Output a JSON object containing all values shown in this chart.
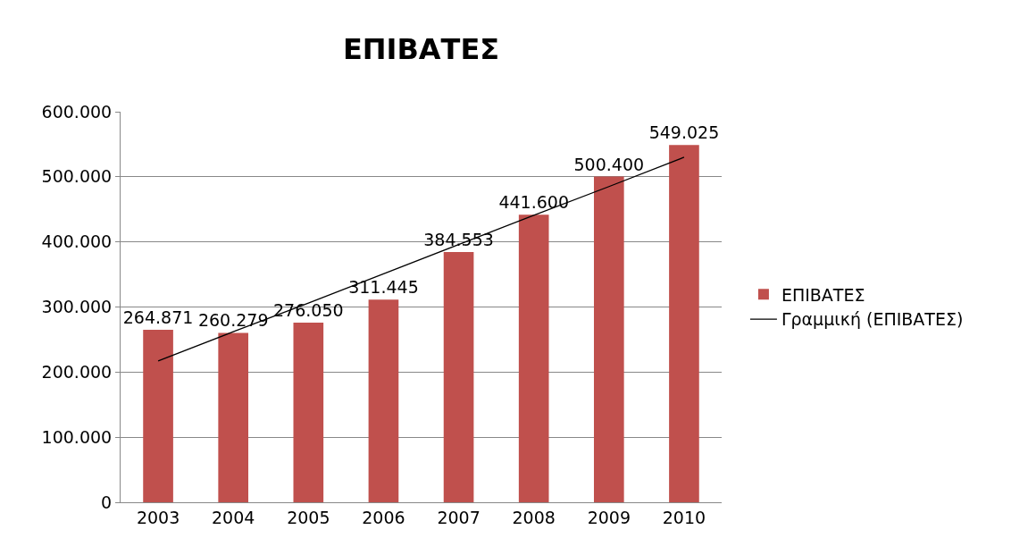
{
  "chart_data": {
    "type": "bar",
    "title": "ΕΠΙΒΑΤΕΣ",
    "categories": [
      "2003",
      "2004",
      "2005",
      "2006",
      "2007",
      "2008",
      "2009",
      "2010"
    ],
    "series": [
      {
        "name": "ΕΠΙΒΑΤΕΣ",
        "color": "#c0504d",
        "values": [
          264871,
          260279,
          276050,
          311445,
          384553,
          441600,
          500400,
          549025
        ],
        "value_labels": [
          "264.871",
          "260.279",
          "276.050",
          "311.445",
          "384.553",
          "441.600",
          "500.400",
          "549.025"
        ]
      },
      {
        "type": "line",
        "name": "Γραμμική (ΕΠΙΒΑΤΕΣ)",
        "color": "#000000",
        "values": [
          217000,
          262000,
          306000,
          351000,
          396000,
          441000,
          485000,
          530000
        ]
      }
    ],
    "ylim": [
      0,
      600000
    ],
    "yticks": [
      {
        "value": 0,
        "label": "0"
      },
      {
        "value": 100000,
        "label": "100.000"
      },
      {
        "value": 200000,
        "label": "200.000"
      },
      {
        "value": 300000,
        "label": "300.000"
      },
      {
        "value": 400000,
        "label": "400.000"
      },
      {
        "value": 500000,
        "label": "500.000"
      },
      {
        "value": 600000,
        "label": "600.000"
      }
    ],
    "grid": "y",
    "legend": "right"
  }
}
